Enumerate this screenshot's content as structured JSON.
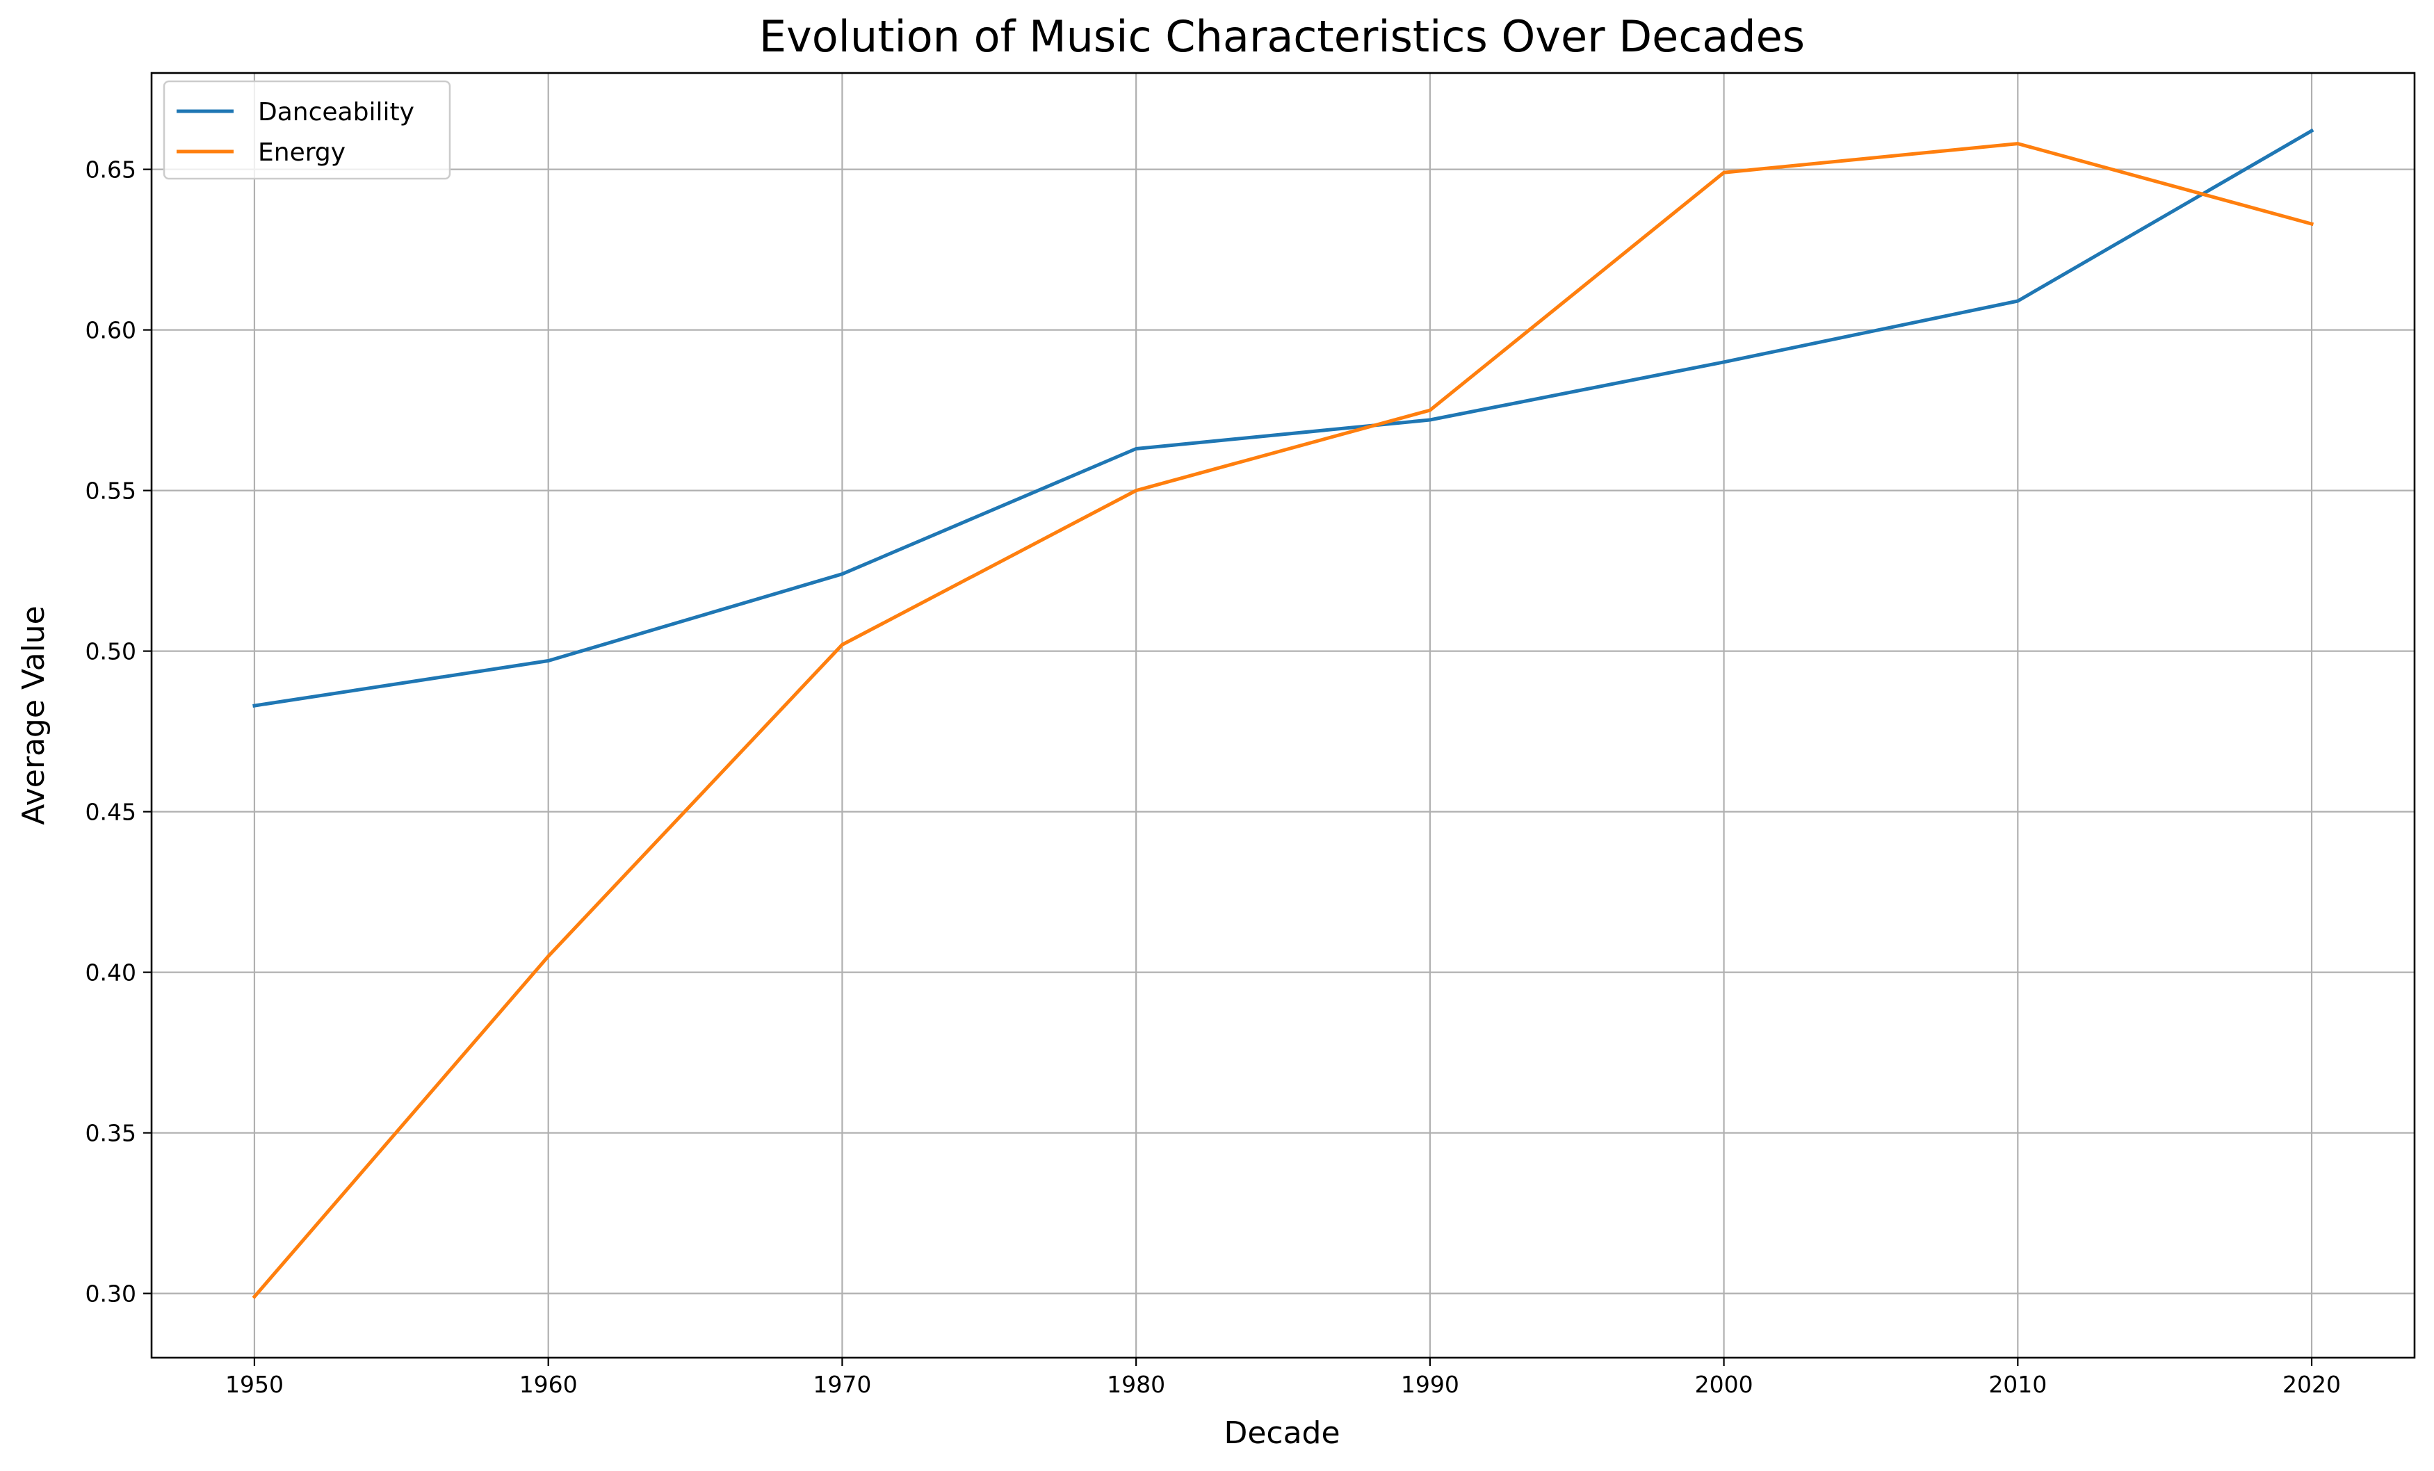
{
  "chart_data": {
    "type": "line",
    "title": "Evolution of Music Characteristics Over Decades",
    "xlabel": "Decade",
    "ylabel": "Average Value",
    "x": [
      1950,
      1960,
      1970,
      1980,
      1990,
      2000,
      2010,
      2020
    ],
    "x_tick_labels": [
      "1950",
      "1960",
      "1970",
      "1980",
      "1990",
      "2000",
      "2010",
      "2020"
    ],
    "xlim": [
      1946.5,
      2023.5
    ],
    "ylim": [
      0.28,
      0.68
    ],
    "y_ticks": [
      0.3,
      0.35,
      0.4,
      0.45,
      0.5,
      0.55,
      0.6,
      0.65
    ],
    "y_tick_labels": [
      "0.30",
      "0.35",
      "0.40",
      "0.45",
      "0.50",
      "0.55",
      "0.60",
      "0.65"
    ],
    "grid": true,
    "legend_position": "top-left",
    "series": [
      {
        "name": "Danceability",
        "color": "#1f77b4",
        "values": [
          0.483,
          0.497,
          0.524,
          0.563,
          0.572,
          0.59,
          0.609,
          0.662
        ]
      },
      {
        "name": "Energy",
        "color": "#ff7f0e",
        "values": [
          0.299,
          0.405,
          0.502,
          0.55,
          0.575,
          0.649,
          0.658,
          0.633
        ]
      }
    ]
  }
}
